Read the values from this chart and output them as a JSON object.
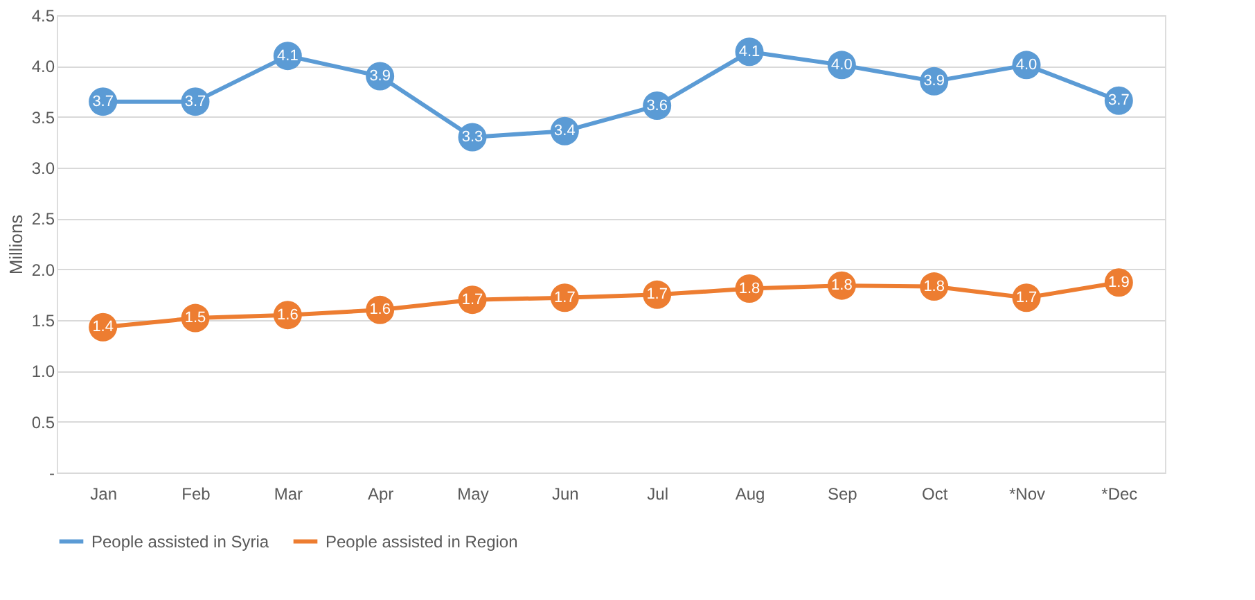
{
  "chart_data": {
    "type": "line",
    "ylabel": "Millions",
    "categories": [
      "Jan",
      "Feb",
      "Mar",
      "Apr",
      "May",
      "Jun",
      "Jul",
      "Aug",
      "Sep",
      "Oct",
      "*Nov",
      "*Dec"
    ],
    "series": [
      {
        "name": "People assisted in Syria",
        "color": "#5b9bd5",
        "values": [
          3.65,
          3.65,
          4.1,
          3.9,
          3.3,
          3.36,
          3.61,
          4.14,
          4.01,
          3.85,
          4.01,
          3.66
        ],
        "value_labels": [
          "3.7",
          "3.7",
          "4.1",
          "3.9",
          "3.3",
          "3.4",
          "3.6",
          "4.1",
          "4.0",
          "3.9",
          "4.0",
          "3.7"
        ]
      },
      {
        "name": "People assisted in Region",
        "color": "#ed7d31",
        "values": [
          1.43,
          1.52,
          1.55,
          1.6,
          1.7,
          1.72,
          1.75,
          1.81,
          1.84,
          1.83,
          1.72,
          1.87
        ],
        "value_labels": [
          "1.4",
          "1.5",
          "1.6",
          "1.6",
          "1.7",
          "1.7",
          "1.7",
          "1.8",
          "1.8",
          "1.8",
          "1.7",
          "1.9"
        ]
      }
    ],
    "ylim": [
      0,
      4.5
    ],
    "yticks": [
      {
        "value": 0,
        "label": "-"
      },
      {
        "value": 0.5,
        "label": "0.5"
      },
      {
        "value": 1,
        "label": "1.0"
      },
      {
        "value": 1.5,
        "label": "1.5"
      },
      {
        "value": 2,
        "label": "2.0"
      },
      {
        "value": 2.5,
        "label": "2.5"
      },
      {
        "value": 3,
        "label": "3.0"
      },
      {
        "value": 3.5,
        "label": "3.5"
      },
      {
        "value": 4,
        "label": "4.0"
      },
      {
        "value": 4.5,
        "label": "4.5"
      }
    ],
    "grid": "y",
    "legend": "bottom",
    "marker": "circle",
    "line_style": "solid"
  }
}
